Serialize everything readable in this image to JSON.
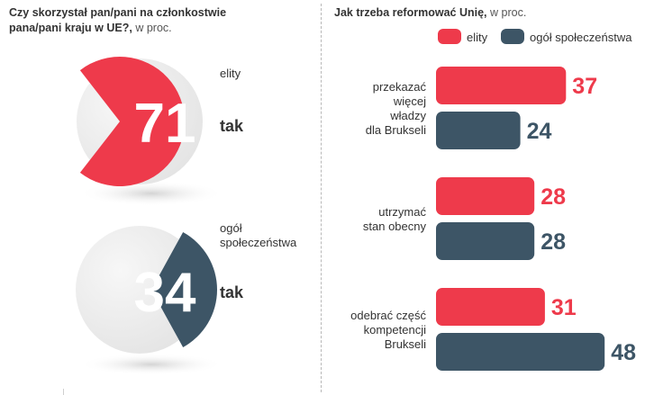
{
  "colors": {
    "elity": "#ee3a4b",
    "ogol": "#3d5566",
    "disc": "#ebebeb",
    "text": "#333333"
  },
  "left": {
    "title": "Czy skorzystał pan/pani na członkostwie pana/pani kraju w UE?,",
    "unit": "w proc."
  },
  "right": {
    "title": "Jak trzeba reformować Unię,",
    "unit": "w proc."
  },
  "chart_data": [
    {
      "type": "pie",
      "title": "Czy skorzystał pan/pani na członkostwie pana/pani kraju w UE?, w proc.",
      "slices": [
        {
          "group": "elity",
          "answer": "tak",
          "value": 71
        },
        {
          "group": "ogół społeczeństwa",
          "answer": "tak",
          "value": 34
        }
      ]
    },
    {
      "type": "bar",
      "orientation": "horizontal",
      "title": "Jak trzeba reformować Unię, w proc.",
      "legend": [
        "elity",
        "ogół społeczeństwa"
      ],
      "categories": [
        "przekazać więcej władzy dla Brukseli",
        "utrzymać stan obecny",
        "odebrać część kompetencji Brukseli"
      ],
      "category_lines": [
        [
          "przekazać",
          "więcej",
          "władzy",
          "dla Brukseli"
        ],
        [
          "utrzymać",
          "stan obecny"
        ],
        [
          "odebrać część",
          "kompetencji",
          "Brukseli"
        ]
      ],
      "series": [
        {
          "name": "elity",
          "values": [
            37,
            28,
            31
          ]
        },
        {
          "name": "ogół społeczeństwa",
          "values": [
            24,
            28,
            48
          ]
        }
      ],
      "xlim": [
        0,
        50
      ]
    }
  ]
}
